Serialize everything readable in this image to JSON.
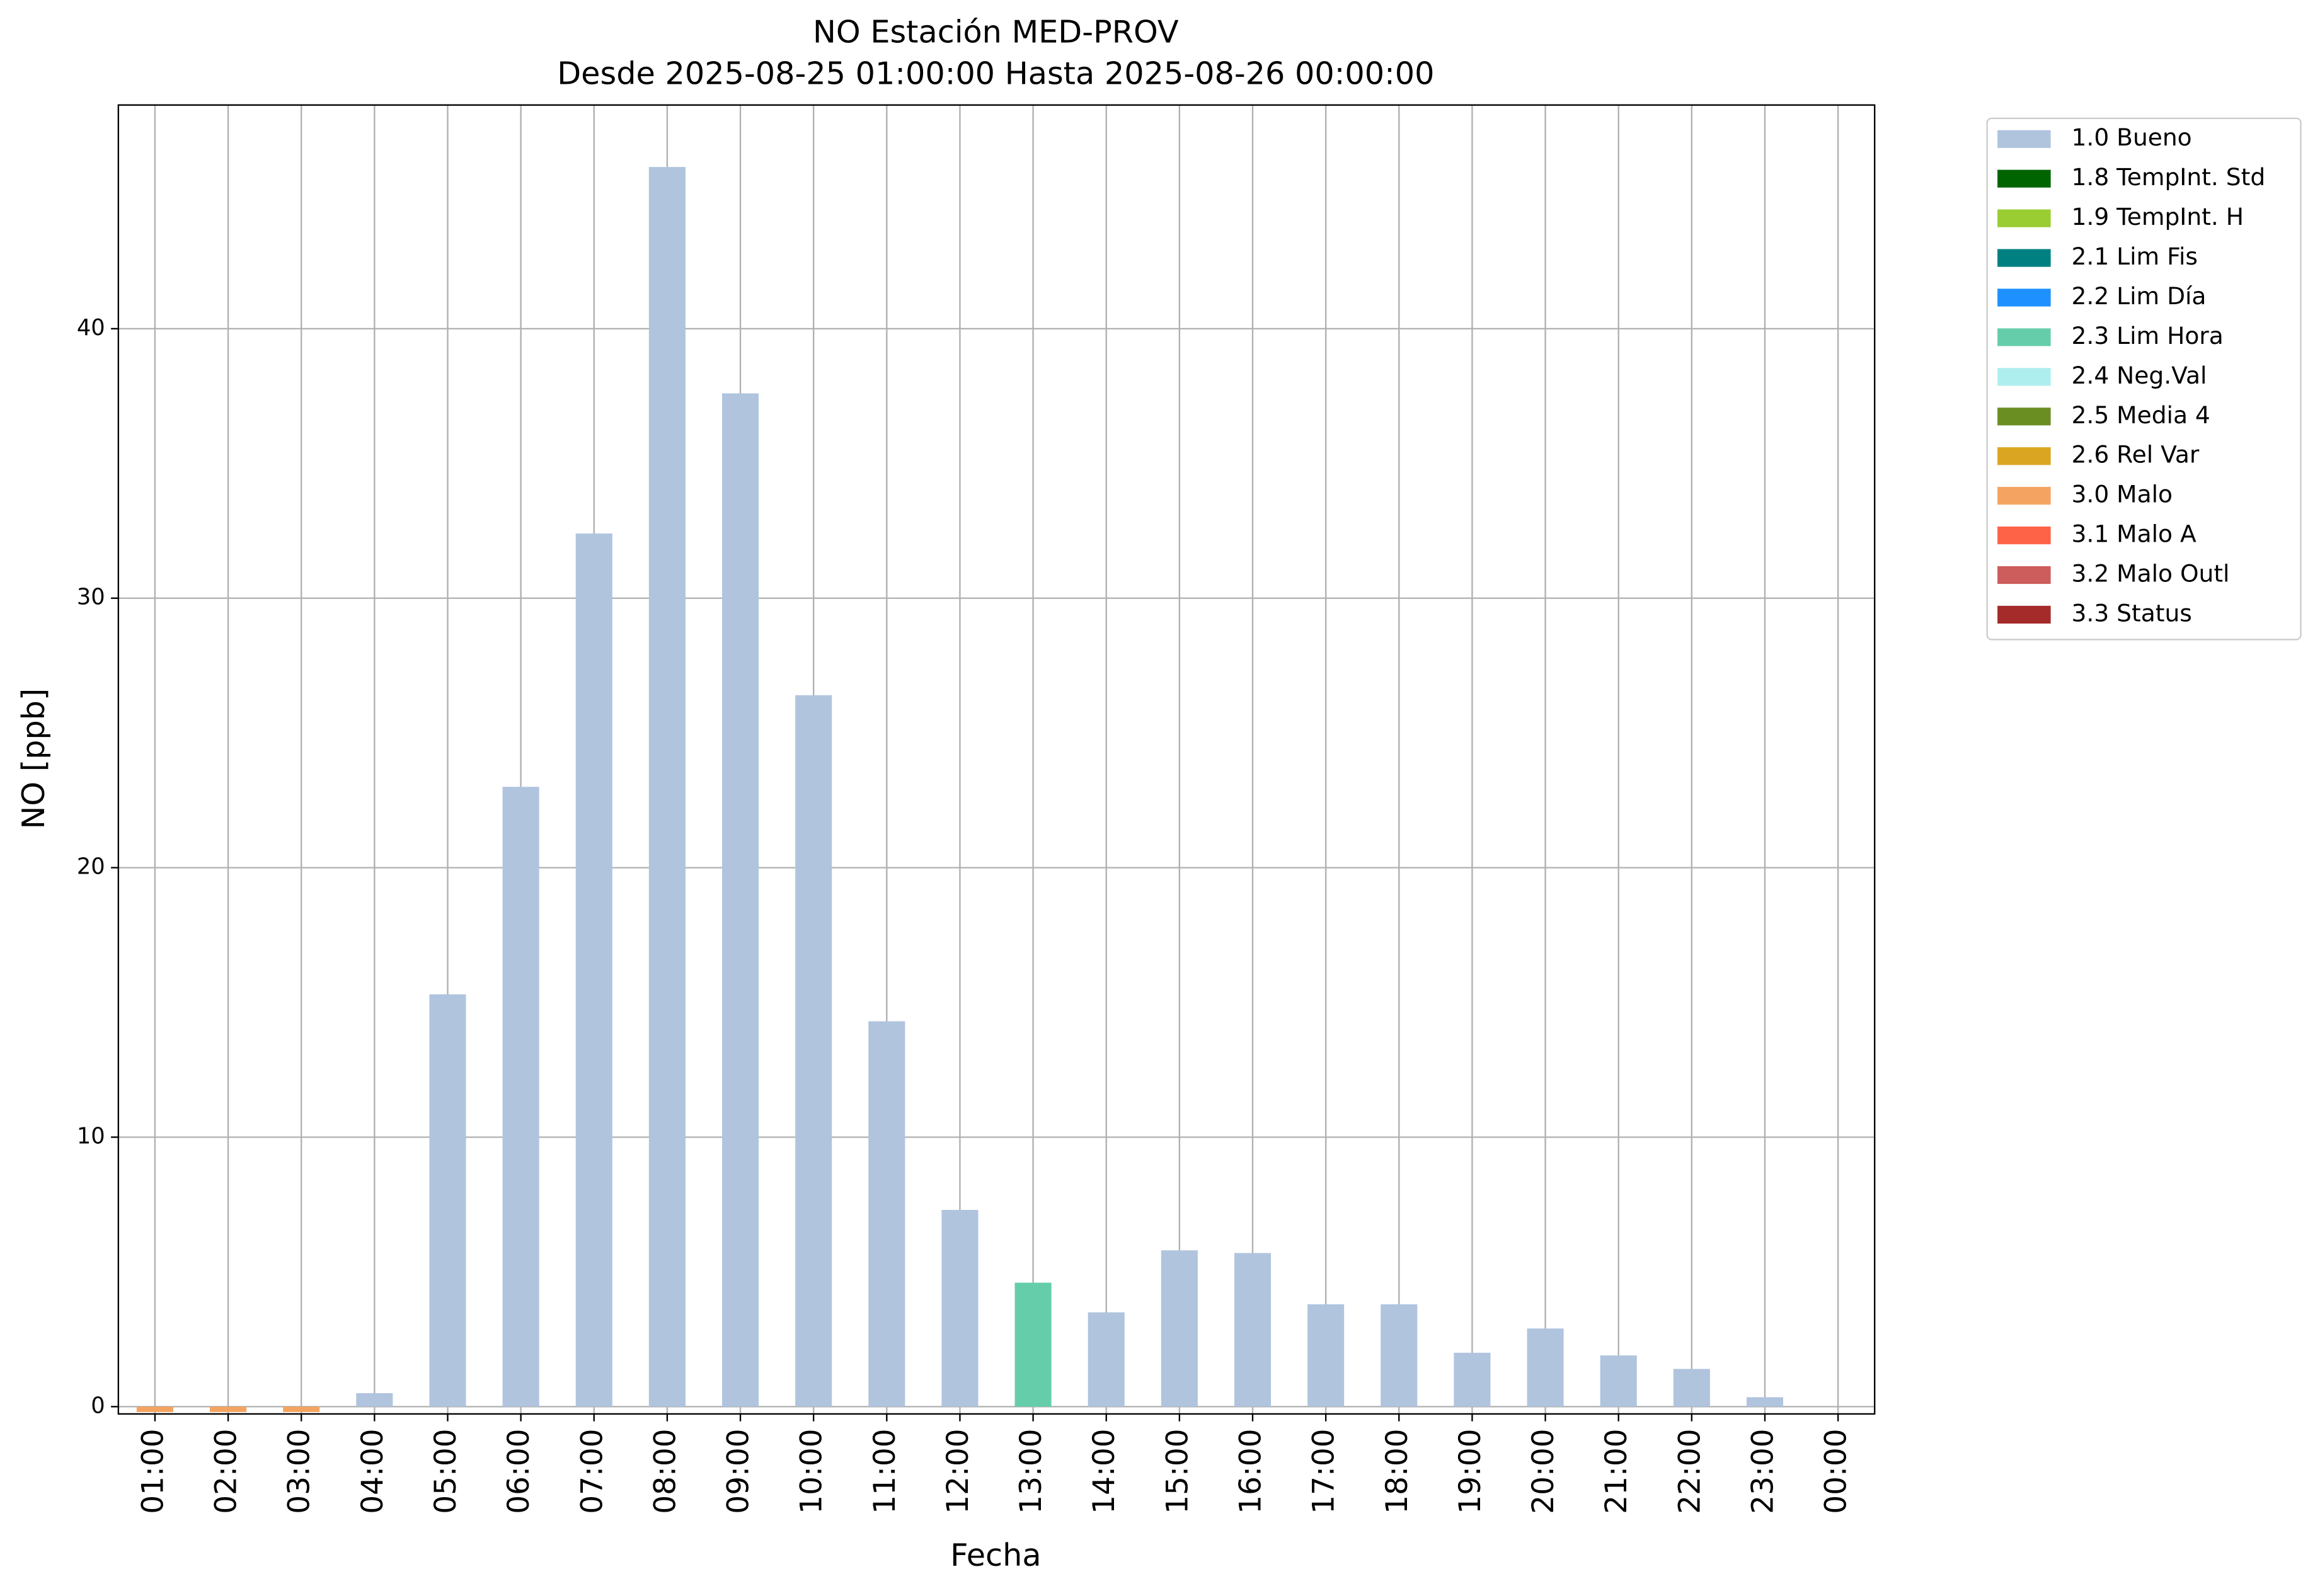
{
  "chart_data": {
    "type": "bar",
    "stacked": true,
    "title": "NO Estación MED-PROV",
    "subtitle": "Desde 2025-08-25 01:00:00 Hasta 2025-08-26 00:00:00",
    "x_label": "Fecha",
    "y_label": "NO [ppb]",
    "categories": [
      "01:00",
      "02:00",
      "03:00",
      "04:00",
      "05:00",
      "06:00",
      "07:00",
      "08:00",
      "09:00",
      "10:00",
      "11:00",
      "12:00",
      "13:00",
      "14:00",
      "15:00",
      "16:00",
      "17:00",
      "18:00",
      "19:00",
      "20:00",
      "21:00",
      "22:00",
      "23:00",
      "00:00"
    ],
    "series": [
      {
        "name": "1.0 Bueno",
        "color": "#b0c4de",
        "values": [
          null,
          null,
          null,
          0.5,
          15.3,
          23.0,
          32.4,
          46.0,
          37.6,
          26.4,
          14.3,
          7.3,
          null,
          3.5,
          5.8,
          5.7,
          3.8,
          3.8,
          2.0,
          2.9,
          1.9,
          1.4,
          0.35,
          null
        ]
      },
      {
        "name": "1.8 TempInt. Std",
        "color": "#006400",
        "values": [
          null,
          null,
          null,
          null,
          null,
          null,
          null,
          null,
          null,
          null,
          null,
          null,
          null,
          null,
          null,
          null,
          null,
          null,
          null,
          null,
          null,
          null,
          null,
          null
        ]
      },
      {
        "name": "1.9 TempInt. H",
        "color": "#9acd32",
        "values": [
          null,
          null,
          null,
          null,
          null,
          null,
          null,
          null,
          null,
          null,
          null,
          null,
          null,
          null,
          null,
          null,
          null,
          null,
          null,
          null,
          null,
          null,
          null,
          null
        ]
      },
      {
        "name": "2.1 Lim Fis",
        "color": "#008080",
        "values": [
          null,
          null,
          null,
          null,
          null,
          null,
          null,
          null,
          null,
          null,
          null,
          null,
          null,
          null,
          null,
          null,
          null,
          null,
          null,
          null,
          null,
          null,
          null,
          null
        ]
      },
      {
        "name": "2.2 Lim Día",
        "color": "#1e90ff",
        "values": [
          null,
          null,
          null,
          null,
          null,
          null,
          null,
          null,
          null,
          null,
          null,
          null,
          null,
          null,
          null,
          null,
          null,
          null,
          null,
          null,
          null,
          null,
          null,
          null
        ]
      },
      {
        "name": "2.3 Lim Hora",
        "color": "#66cdaa",
        "values": [
          null,
          null,
          null,
          null,
          null,
          null,
          null,
          null,
          null,
          null,
          null,
          null,
          4.6,
          null,
          null,
          null,
          null,
          null,
          null,
          null,
          null,
          null,
          null,
          null
        ]
      },
      {
        "name": "2.4 Neg.Val",
        "color": "#afeeee",
        "values": [
          null,
          null,
          null,
          null,
          null,
          null,
          null,
          null,
          null,
          null,
          null,
          null,
          null,
          null,
          null,
          null,
          null,
          null,
          null,
          null,
          null,
          null,
          null,
          null
        ]
      },
      {
        "name": "2.5 Media 4",
        "color": "#6b8e23",
        "values": [
          null,
          null,
          null,
          null,
          null,
          null,
          null,
          null,
          null,
          null,
          null,
          null,
          null,
          null,
          null,
          null,
          null,
          null,
          null,
          null,
          null,
          null,
          null,
          null
        ]
      },
      {
        "name": "2.6 Rel Var",
        "color": "#daa520",
        "values": [
          null,
          null,
          null,
          null,
          null,
          null,
          null,
          null,
          null,
          null,
          null,
          null,
          null,
          null,
          null,
          null,
          null,
          null,
          null,
          null,
          null,
          null,
          null,
          null
        ]
      },
      {
        "name": "3.0 Malo",
        "color": "#f4a460",
        "values": [
          -0.2,
          -0.2,
          -0.2,
          null,
          null,
          null,
          null,
          null,
          null,
          null,
          null,
          null,
          null,
          null,
          null,
          null,
          null,
          null,
          null,
          null,
          null,
          null,
          null,
          null
        ]
      },
      {
        "name": "3.1 Malo A",
        "color": "#ff6347",
        "values": [
          null,
          null,
          null,
          null,
          null,
          null,
          null,
          null,
          null,
          null,
          null,
          null,
          null,
          null,
          null,
          null,
          null,
          null,
          null,
          null,
          null,
          null,
          null,
          null
        ]
      },
      {
        "name": "3.2 Malo Outl",
        "color": "#cd5c5c",
        "values": [
          null,
          null,
          null,
          null,
          null,
          null,
          null,
          null,
          null,
          null,
          null,
          null,
          null,
          null,
          null,
          null,
          null,
          null,
          null,
          null,
          null,
          null,
          null,
          null
        ]
      },
      {
        "name": "3.3 Status",
        "color": "#a52a2a",
        "values": [
          null,
          null,
          null,
          null,
          null,
          null,
          null,
          null,
          null,
          null,
          null,
          null,
          null,
          null,
          null,
          null,
          null,
          null,
          null,
          null,
          null,
          null,
          null,
          null
        ]
      }
    ],
    "ylim": [
      -0.27,
      48.3
    ],
    "yticks": [
      0,
      10,
      20,
      30,
      40
    ],
    "grid": true,
    "legend": "outside upper right"
  }
}
